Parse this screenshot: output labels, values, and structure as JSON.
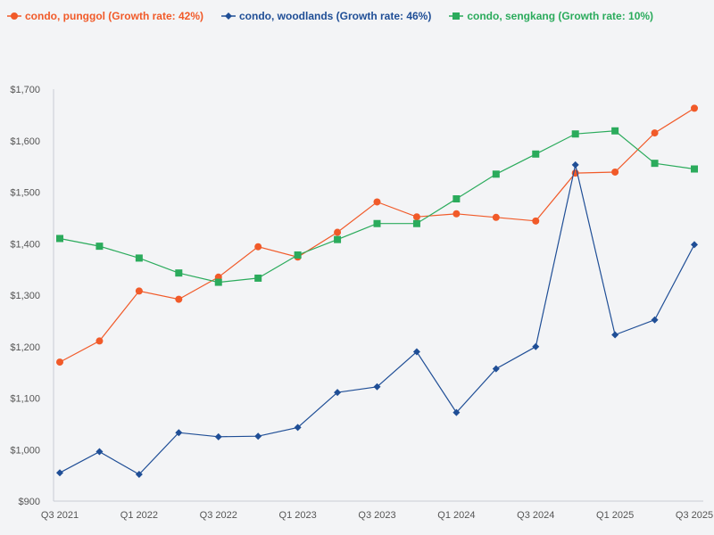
{
  "chart_data": {
    "type": "line",
    "title": "",
    "xlabel": "",
    "ylabel": "",
    "ylim": [
      900,
      1700
    ],
    "y_ticks": [
      "$900",
      "$1,000",
      "$1,100",
      "$1,200",
      "$1,300",
      "$1,400",
      "$1,500",
      "$1,600",
      "$1,700"
    ],
    "y_tick_values": [
      900,
      1000,
      1100,
      1200,
      1300,
      1400,
      1500,
      1600,
      1700
    ],
    "categories": [
      "Q3 2021",
      "Q4 2021",
      "Q1 2022",
      "Q2 2022",
      "Q3 2022",
      "Q4 2022",
      "Q1 2023",
      "Q2 2023",
      "Q3 2023",
      "Q4 2023",
      "Q1 2024",
      "Q2 2024",
      "Q3 2024",
      "Q4 2024",
      "Q1 2025",
      "Q2 2025",
      "Q3 2025"
    ],
    "x_tick_labels": [
      "Q3 2021",
      "Q1 2022",
      "Q3 2022",
      "Q1 2023",
      "Q3 2023",
      "Q1 2024",
      "Q3 2024",
      "Q1 2025",
      "Q3 2025"
    ],
    "series": [
      {
        "name": "condo, punggol (Growth rate: 42%)",
        "color": "#f15a29",
        "marker": "circle",
        "values": [
          1170,
          1211,
          1308,
          1292,
          1335,
          1394,
          1374,
          1422,
          1481,
          1452,
          1458,
          1451,
          1444,
          1537,
          1539,
          1615,
          1663
        ]
      },
      {
        "name": "condo, woodlands (Growth rate: 46%)",
        "color": "#1f4e96",
        "marker": "diamond",
        "values": [
          955,
          996,
          952,
          1033,
          1025,
          1026,
          1043,
          1111,
          1122,
          1190,
          1072,
          1157,
          1200,
          1553,
          1223,
          1252,
          1398
        ]
      },
      {
        "name": "condo, sengkang (Growth rate: 10%)",
        "color": "#2bab5c",
        "marker": "square",
        "values": [
          1410,
          1395,
          1372,
          1343,
          1325,
          1333,
          1378,
          1408,
          1439,
          1439,
          1487,
          1535,
          1574,
          1613,
          1619,
          1556,
          1545
        ]
      }
    ],
    "legend_position": "top-left",
    "grid": false
  }
}
